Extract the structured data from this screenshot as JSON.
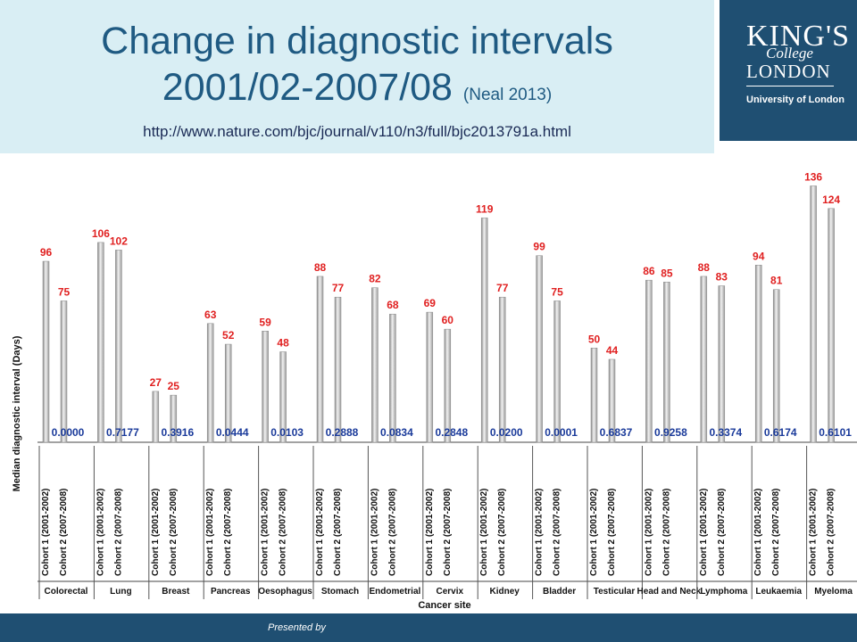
{
  "header": {
    "title_line1": "Change in diagnostic intervals",
    "title_line2": "2001/02-2007/08",
    "citation": "(Neal 2013)",
    "url": "http://www.nature.com/bjc/journal/v110/n3/full/bjc2013791a.html"
  },
  "logo": {
    "line1": "KING'S",
    "line2": "College",
    "line3": "LONDON",
    "line4": "University of London"
  },
  "footer": {
    "text": "Presented by"
  },
  "chart_data": {
    "type": "bar",
    "ylabel": "Median diagnostic interval (Days)",
    "xlabel": "Cancer site",
    "categories": [
      "Colorectal",
      "Lung",
      "Breast",
      "Pancreas",
      "Oesophagus",
      "Stomach",
      "Endometrial",
      "Cervix",
      "Kidney",
      "Bladder",
      "Testicular",
      "Head and Neck",
      "Lymphoma",
      "Leukaemia",
      "Myeloma"
    ],
    "cohort_labels": [
      "Cohort 1 (2001-2002)",
      "Cohort 2 (2007-2008)"
    ],
    "series": [
      {
        "values": [
          96,
          106,
          27,
          63,
          59,
          88,
          82,
          69,
          119,
          99,
          50,
          86,
          88,
          94,
          136
        ]
      },
      {
        "values": [
          75,
          102,
          25,
          52,
          48,
          77,
          68,
          60,
          77,
          75,
          44,
          85,
          83,
          81,
          124
        ]
      }
    ],
    "p_values": [
      "0.0000",
      "0.7177",
      "0.3916",
      "0.0444",
      "0.0103",
      "0.2888",
      "0.0834",
      "0.2848",
      "0.0200",
      "0.0001",
      "0.6837",
      "0.9258",
      "0.3374",
      "0.6174",
      "0.6101"
    ],
    "ylim": [
      0,
      140
    ],
    "colors": {
      "bar": "#bdbdbd",
      "value_label": "#e02020",
      "p_value": "#1a3a9a"
    }
  }
}
